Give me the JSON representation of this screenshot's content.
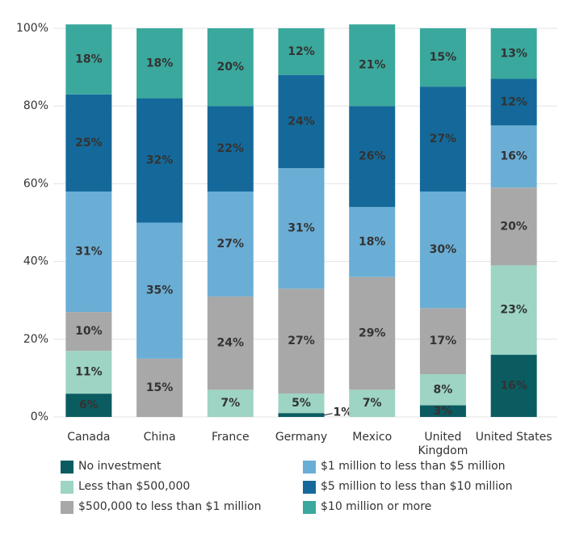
{
  "chart_data": {
    "type": "stacked_bar",
    "categories": [
      "Canada",
      "China",
      "France",
      "Germany",
      "Mexico",
      "United Kingdom",
      "United States"
    ],
    "series": [
      {
        "name": "No investment",
        "color": "#0b5c61",
        "values": [
          6,
          0,
          0,
          1,
          0,
          3,
          16
        ],
        "value_labels": [
          "6%",
          null,
          null,
          "1%",
          null,
          "3%",
          "16%"
        ]
      },
      {
        "name": "Less than $500,000",
        "color": "#9dd4c4",
        "values": [
          11,
          0,
          7,
          5,
          7,
          8,
          23
        ],
        "value_labels": [
          "11%",
          null,
          "7%",
          "5%",
          "7%",
          "8%",
          "23%"
        ]
      },
      {
        "name": "$500,000 to less than $1 million",
        "color": "#a8a8a8",
        "values": [
          10,
          15,
          24,
          27,
          29,
          17,
          20
        ],
        "value_labels": [
          "10%",
          "15%",
          "24%",
          "27%",
          "29%",
          "17%",
          "20%"
        ]
      },
      {
        "name": "$1 million to less than $5 million",
        "color": "#6aaed6",
        "values": [
          31,
          35,
          27,
          31,
          18,
          30,
          16
        ],
        "value_labels": [
          "31%",
          "35%",
          "27%",
          "31%",
          "18%",
          "30%",
          "16%"
        ]
      },
      {
        "name": "$5 million to less than $10 million",
        "color": "#14699a",
        "values": [
          25,
          32,
          22,
          24,
          26,
          27,
          12
        ],
        "value_labels": [
          "25%",
          "32%",
          "22%",
          "24%",
          "26%",
          "27%",
          "12%"
        ]
      },
      {
        "name": "$10 million or more",
        "color": "#3aa89c",
        "values": [
          18,
          18,
          20,
          12,
          21,
          15,
          13
        ],
        "value_labels": [
          "18%",
          "18%",
          "20%",
          "12%",
          "21%",
          "15%",
          "13%"
        ]
      }
    ],
    "ylim": [
      0,
      100
    ],
    "yticks": [
      {
        "value": 0,
        "label": "0%"
      },
      {
        "value": 20,
        "label": "20%"
      },
      {
        "value": 40,
        "label": "40%"
      },
      {
        "value": 60,
        "label": "60%"
      },
      {
        "value": 80,
        "label": "80%"
      },
      {
        "value": 100,
        "label": "100%"
      }
    ],
    "grid": true
  }
}
